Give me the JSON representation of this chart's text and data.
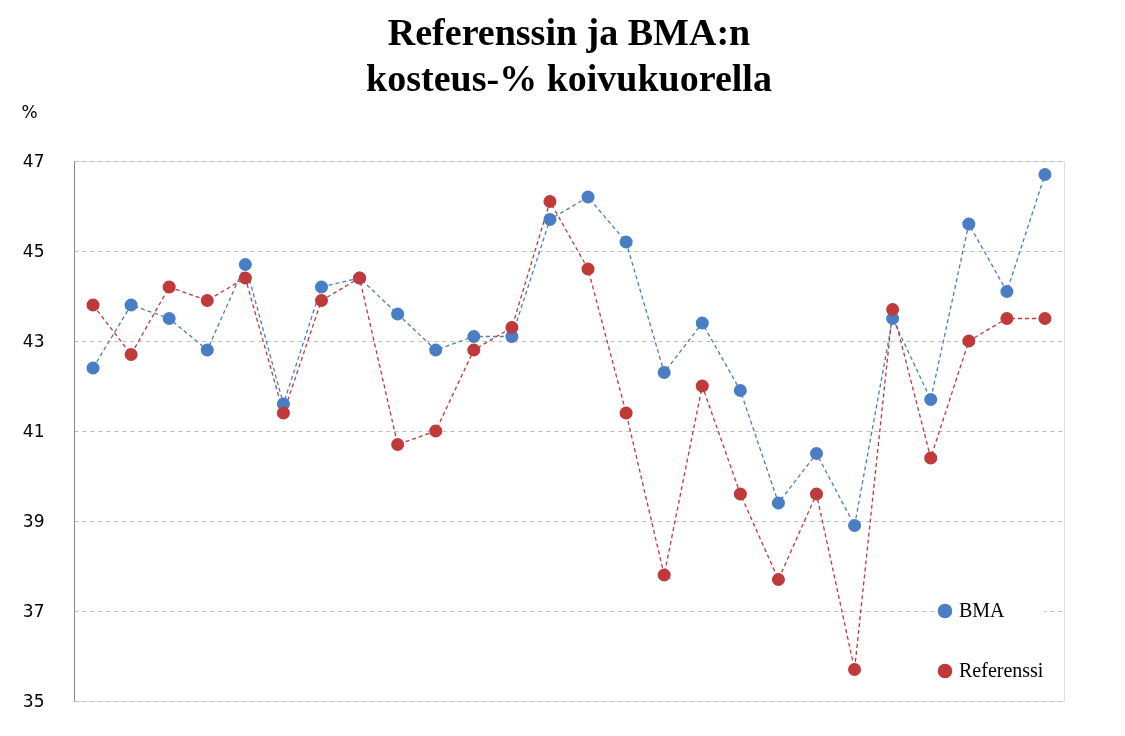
{
  "chart_data": {
    "type": "line",
    "title": "Referenssin ja BMA:n kosteus-% koivukuorella",
    "ylabel": "%",
    "categories": [
      null,
      null,
      null,
      null,
      null,
      null,
      null,
      null,
      null,
      null,
      null,
      null,
      null,
      null,
      null,
      null,
      null,
      null,
      null,
      null,
      null,
      null,
      null,
      null,
      null,
      null
    ],
    "series": [
      {
        "name": "BMA",
        "color": "#4a7ec4",
        "values": [
          42.4,
          43.8,
          43.5,
          42.8,
          44.7,
          41.6,
          44.2,
          44.4,
          43.6,
          42.8,
          43.1,
          43.1,
          45.7,
          46.2,
          45.2,
          42.3,
          43.4,
          41.9,
          39.4,
          40.5,
          38.9,
          43.5,
          41.7,
          45.6,
          44.1,
          46.7
        ]
      },
      {
        "name": "Referenssi",
        "color": "#c0393b",
        "values": [
          43.8,
          42.7,
          44.2,
          43.9,
          44.4,
          41.4,
          43.9,
          44.4,
          40.7,
          41.0,
          42.8,
          43.3,
          46.1,
          44.6,
          41.4,
          37.8,
          42.0,
          39.6,
          37.7,
          39.6,
          35.7,
          43.7,
          40.4,
          43.0,
          43.5,
          43.5
        ]
      }
    ],
    "ylim": [
      35,
      47
    ],
    "yticks": [
      35,
      37,
      39,
      41,
      43,
      45,
      47
    ],
    "grid": "y",
    "legend": "bottom right",
    "marker": "circle",
    "line_style": "dashed",
    "tick_labels": "y"
  }
}
